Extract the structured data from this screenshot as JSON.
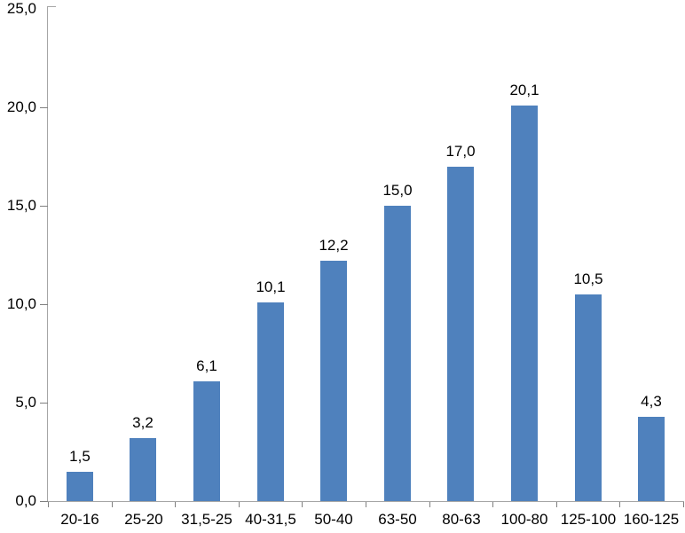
{
  "chart_data": {
    "type": "bar",
    "title": "",
    "xlabel": "",
    "ylabel": "",
    "categories": [
      "20-16",
      "25-20",
      "31,5-25",
      "40-31,5",
      "50-40",
      "63-50",
      "80-63",
      "100-80",
      "125-100",
      "160-125"
    ],
    "values": [
      1.5,
      3.2,
      6.1,
      10.1,
      12.2,
      15.0,
      17.0,
      20.1,
      10.5,
      4.3
    ],
    "value_labels": [
      "1,5",
      "3,2",
      "6,1",
      "10,1",
      "12,2",
      "15,0",
      "17,0",
      "20,1",
      "10,5",
      "4,3"
    ],
    "ylim": [
      0,
      25
    ],
    "yticks": [
      0,
      5,
      10,
      15,
      20,
      25
    ],
    "ytick_labels": [
      "0,0",
      "5,0",
      "10,0",
      "15,0",
      "20,0",
      "25,0"
    ],
    "grid": false,
    "legend": "none",
    "decimal_separator": ",",
    "bar_color": "#4F81BD",
    "axis_color": "#a6a6a6",
    "tick_color": "#7f7f7f",
    "text_color": "#000000",
    "background_color": "#ffffff"
  }
}
